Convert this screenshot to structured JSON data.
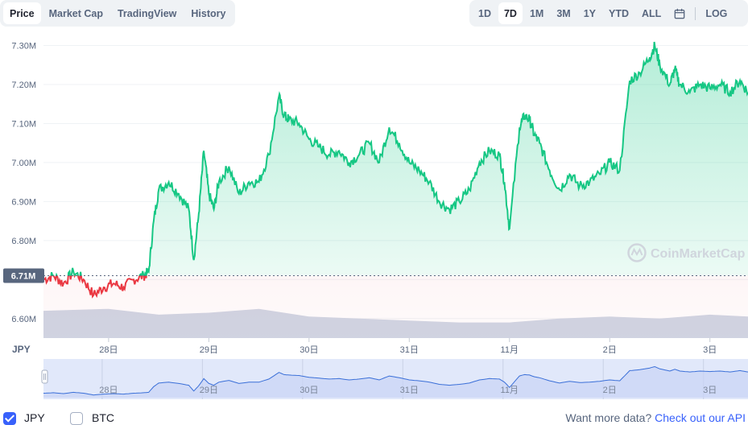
{
  "tabs": [
    {
      "label": "Price",
      "active": true
    },
    {
      "label": "Market Cap",
      "active": false
    },
    {
      "label": "TradingView",
      "active": false
    },
    {
      "label": "History",
      "active": false
    }
  ],
  "ranges": [
    {
      "label": "1D",
      "active": false
    },
    {
      "label": "7D",
      "active": true
    },
    {
      "label": "1M",
      "active": false
    },
    {
      "label": "3M",
      "active": false
    },
    {
      "label": "1Y",
      "active": false
    },
    {
      "label": "YTD",
      "active": false
    },
    {
      "label": "ALL",
      "active": false
    }
  ],
  "calendar_icon": "calendar-icon",
  "log_label": "LOG",
  "watermark": "CoinMarketCap",
  "footer": {
    "currencies": [
      {
        "label": "JPY",
        "checked": true
      },
      {
        "label": "BTC",
        "checked": false
      }
    ],
    "more_text": "Want more data?",
    "more_link": "Check out our API"
  },
  "chart_data": {
    "type": "line",
    "currency_label": "JPY",
    "reference_label": "6.71M",
    "reference_value": 6.71,
    "y_ticks": [
      6.6,
      6.7,
      6.8,
      6.9,
      7.0,
      7.1,
      7.2,
      7.3
    ],
    "y_tick_labels": [
      "6.60M",
      "",
      "6.80M",
      "6.90M",
      "7.00M",
      "7.10M",
      "7.20M",
      "7.30M"
    ],
    "ylim": [
      6.55,
      7.33
    ],
    "x_tick_labels": [
      "28日",
      "29日",
      "30日",
      "31日",
      "11月",
      "2日",
      "3日"
    ],
    "x_tick_positions": [
      1.0,
      2.0,
      3.0,
      4.0,
      5.0,
      6.0,
      7.0
    ],
    "xlim": [
      0.35,
      7.38
    ],
    "colors": {
      "up": "#16c784",
      "down": "#ea3943",
      "volume": "#cfd6e4",
      "navigator": "#3a6fd8"
    },
    "price_series": {
      "name": "Price",
      "x": [
        0.35,
        0.45,
        0.55,
        0.65,
        0.75,
        0.85,
        0.95,
        1.05,
        1.15,
        1.25,
        1.35,
        1.4,
        1.45,
        1.5,
        1.6,
        1.7,
        1.8,
        1.85,
        1.9,
        1.95,
        2.0,
        2.05,
        2.1,
        2.2,
        2.3,
        2.4,
        2.5,
        2.6,
        2.7,
        2.75,
        2.8,
        2.9,
        3.0,
        3.1,
        3.2,
        3.3,
        3.4,
        3.5,
        3.6,
        3.7,
        3.8,
        3.9,
        4.0,
        4.1,
        4.2,
        4.3,
        4.4,
        4.5,
        4.6,
        4.7,
        4.8,
        4.9,
        4.95,
        5.0,
        5.1,
        5.15,
        5.2,
        5.25,
        5.3,
        5.4,
        5.5,
        5.6,
        5.7,
        5.8,
        5.9,
        6.0,
        6.1,
        6.2,
        6.3,
        6.4,
        6.45,
        6.5,
        6.6,
        6.65,
        6.7,
        6.8,
        6.9,
        7.0,
        7.1,
        7.2,
        7.3,
        7.38
      ],
      "y": [
        6.7,
        6.71,
        6.69,
        6.72,
        6.7,
        6.66,
        6.68,
        6.69,
        6.68,
        6.7,
        6.71,
        6.72,
        6.85,
        6.93,
        6.95,
        6.92,
        6.88,
        6.75,
        6.87,
        7.03,
        6.92,
        6.88,
        6.95,
        6.99,
        6.92,
        6.95,
        6.95,
        7.02,
        7.17,
        7.12,
        7.11,
        7.1,
        7.06,
        7.04,
        7.02,
        7.03,
        7.0,
        7.02,
        7.05,
        7.0,
        7.09,
        7.05,
        7.0,
        6.98,
        6.95,
        6.9,
        6.88,
        6.9,
        6.93,
        7.0,
        7.03,
        7.02,
        6.95,
        6.83,
        7.09,
        7.12,
        7.11,
        7.07,
        7.05,
        6.98,
        6.93,
        6.97,
        6.94,
        6.95,
        6.97,
        7.0,
        6.98,
        7.21,
        7.23,
        7.27,
        7.3,
        7.25,
        7.2,
        7.24,
        7.2,
        7.18,
        7.2,
        7.19,
        7.2,
        7.18,
        7.21,
        7.18
      ]
    },
    "volume_series": {
      "name": "Volume",
      "x": [
        0.35,
        1.0,
        1.5,
        2.0,
        2.5,
        3.0,
        3.5,
        4.0,
        4.5,
        5.0,
        5.5,
        6.0,
        6.5,
        7.0,
        7.38
      ],
      "y": [
        6.62,
        6.625,
        6.61,
        6.615,
        6.625,
        6.605,
        6.6,
        6.595,
        6.59,
        6.59,
        6.6,
        6.605,
        6.6,
        6.61,
        6.605
      ]
    }
  }
}
